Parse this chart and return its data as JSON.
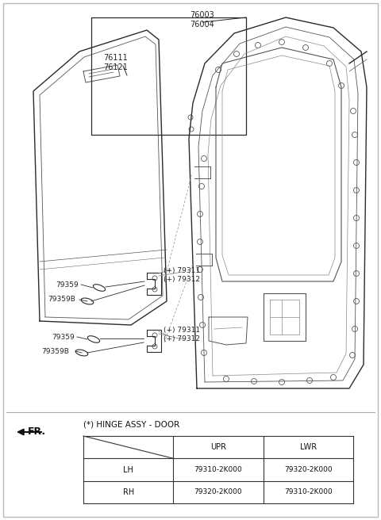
{
  "background_color": "#ffffff",
  "fig_width": 4.8,
  "fig_height": 6.56,
  "dpi": 100,
  "label_76003": "76003\n76004",
  "label_76111": "76111\n76121",
  "label_79311_top": "(+) 79311\n(+) 79312",
  "label_79311_bot": "(+) 79311\n(+) 79312",
  "label_79359_top": "79359",
  "label_79359B_top": "79359B",
  "label_79359_bot": "79359",
  "label_79359B_bot": "79359B",
  "label_FR": "FR.",
  "label_hinge": "(*) HINGE ASSY - DOOR",
  "table_col_headers": [
    "UPR",
    "LWR"
  ],
  "table_row_headers": [
    "LH",
    "RH"
  ],
  "table_data": [
    [
      "79310-2K000",
      "79320-2K000"
    ],
    [
      "79320-2K000",
      "79310-2K000"
    ]
  ]
}
